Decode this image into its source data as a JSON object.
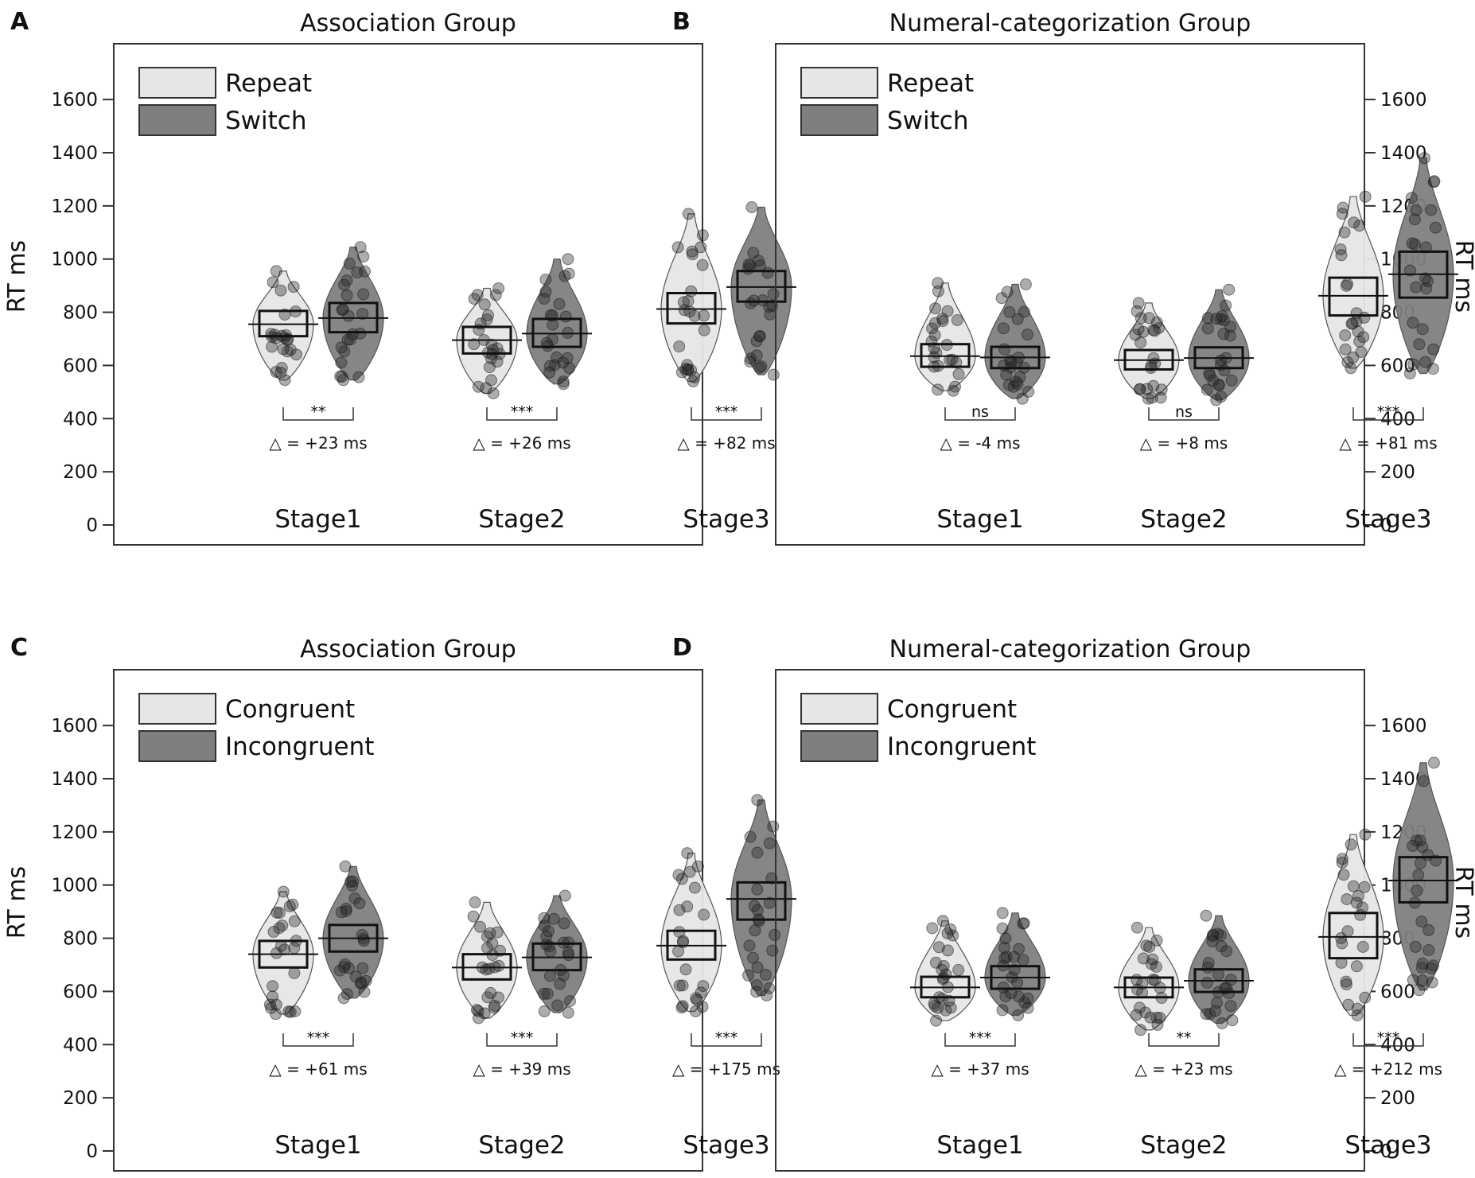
{
  "figure": {
    "panels": [
      {
        "id": "A",
        "letter": "A",
        "type": "violin",
        "title": "Association Group",
        "ylabel": "RT ms",
        "yticks": [
          "0",
          "200",
          "400",
          "600",
          "800",
          "1000",
          "1200",
          "1400",
          "1600"
        ],
        "ylim": [
          0,
          1750
        ],
        "axis_side": "left",
        "legend": [
          {
            "label": "Repeat",
            "color": "#e6e6e6"
          },
          {
            "label": "Switch",
            "color": "#7f7f7f"
          }
        ],
        "legend_position": "top-left",
        "stages": [
          {
            "label": "Stage1",
            "sig": "**",
            "delta": "△ = +23 ms",
            "series": [
              {
                "mean": 755,
                "ci": [
                  710,
                  805
                ],
                "min": 545,
                "max": 955
              },
              {
                "mean": 778,
                "ci": [
                  725,
                  835
                ],
                "min": 545,
                "max": 1045
              }
            ]
          },
          {
            "label": "Stage2",
            "sig": "***",
            "delta": "△ = +26 ms",
            "series": [
              {
                "mean": 695,
                "ci": [
                  645,
                  745
                ],
                "min": 495,
                "max": 890
              },
              {
                "mean": 720,
                "ci": [
                  670,
                  775
                ],
                "min": 530,
                "max": 1000
              }
            ]
          },
          {
            "label": "Stage3",
            "sig": "***",
            "delta": "△ = +82 ms",
            "series": [
              {
                "mean": 812,
                "ci": [
                  758,
                  872
                ],
                "min": 540,
                "max": 1170
              },
              {
                "mean": 895,
                "ci": [
                  840,
                  955
                ],
                "min": 565,
                "max": 1195
              }
            ]
          }
        ]
      },
      {
        "id": "B",
        "letter": "B",
        "type": "violin",
        "title": "Numeral-categorization Group",
        "ylabel": "RT ms",
        "yticks": [
          "0",
          "200",
          "400",
          "600",
          "800",
          "1000",
          "1200",
          "1400",
          "1600"
        ],
        "ylim": [
          0,
          1750
        ],
        "axis_side": "right",
        "legend": [
          {
            "label": "Repeat",
            "color": "#e6e6e6"
          },
          {
            "label": "Switch",
            "color": "#7f7f7f"
          }
        ],
        "legend_position": "top-left",
        "stages": [
          {
            "label": "Stage1",
            "sig": "ns",
            "delta": "△ = -4 ms",
            "series": [
              {
                "mean": 635,
                "ci": [
                  595,
                  680
                ],
                "min": 505,
                "max": 910
              },
              {
                "mean": 630,
                "ci": [
                  590,
                  670
                ],
                "min": 475,
                "max": 905
              }
            ]
          },
          {
            "label": "Stage2",
            "sig": "ns",
            "delta": "△ = +8 ms",
            "series": [
              {
                "mean": 620,
                "ci": [
                  585,
                  658
                ],
                "min": 475,
                "max": 835
              },
              {
                "mean": 628,
                "ci": [
                  590,
                  668
                ],
                "min": 470,
                "max": 885
              }
            ]
          },
          {
            "label": "Stage3",
            "sig": "***",
            "delta": "△ = +81 ms",
            "series": [
              {
                "mean": 862,
                "ci": [
                  788,
                  930
                ],
                "min": 590,
                "max": 1235
              },
              {
                "mean": 943,
                "ci": [
                  855,
                  1028
                ],
                "min": 570,
                "max": 1380
              }
            ]
          }
        ]
      },
      {
        "id": "C",
        "letter": "C",
        "type": "violin",
        "title": "Association Group",
        "ylabel": "RT ms",
        "yticks": [
          "0",
          "200",
          "400",
          "600",
          "800",
          "1000",
          "1200",
          "1400",
          "1600"
        ],
        "ylim": [
          0,
          1750
        ],
        "axis_side": "left",
        "legend": [
          {
            "label": "Congruent",
            "color": "#e6e6e6"
          },
          {
            "label": "Incongruent",
            "color": "#7f7f7f"
          }
        ],
        "legend_position": "top-left",
        "stages": [
          {
            "label": "Stage1",
            "sig": "***",
            "delta": "△ = +61 ms",
            "series": [
              {
                "mean": 740,
                "ci": [
                  690,
                  790
                ],
                "min": 515,
                "max": 975
              },
              {
                "mean": 800,
                "ci": [
                  750,
                  850
                ],
                "min": 575,
                "max": 1070
              }
            ]
          },
          {
            "label": "Stage2",
            "sig": "***",
            "delta": "△ = +39 ms",
            "series": [
              {
                "mean": 690,
                "ci": [
                  645,
                  740
                ],
                "min": 500,
                "max": 935
              },
              {
                "mean": 728,
                "ci": [
                  680,
                  780
                ],
                "min": 520,
                "max": 960
              }
            ]
          },
          {
            "label": "Stage3",
            "sig": "***",
            "delta": "△ = +175 ms",
            "series": [
              {
                "mean": 772,
                "ci": [
                  720,
                  828
                ],
                "min": 525,
                "max": 1120
              },
              {
                "mean": 948,
                "ci": [
                  870,
                  1010
                ],
                "min": 585,
                "max": 1320
              }
            ]
          }
        ]
      },
      {
        "id": "D",
        "letter": "D",
        "type": "violin",
        "title": "Numeral-categorization Group",
        "ylabel": "RT ms",
        "yticks": [
          "0",
          "200",
          "400",
          "600",
          "800",
          "1000",
          "1200",
          "1400",
          "1600"
        ],
        "ylim": [
          0,
          1750
        ],
        "axis_side": "right",
        "legend": [
          {
            "label": "Congruent",
            "color": "#e6e6e6"
          },
          {
            "label": "Incongruent",
            "color": "#7f7f7f"
          }
        ],
        "legend_position": "top-left",
        "stages": [
          {
            "label": "Stage1",
            "sig": "***",
            "delta": "△ = +37 ms",
            "series": [
              {
                "mean": 615,
                "ci": [
                  578,
                  655
                ],
                "min": 490,
                "max": 865
              },
              {
                "mean": 652,
                "ci": [
                  610,
                  695
                ],
                "min": 510,
                "max": 895
              }
            ]
          },
          {
            "label": "Stage2",
            "sig": "**",
            "delta": "△ = +23 ms",
            "series": [
              {
                "mean": 615,
                "ci": [
                  578,
                  652
                ],
                "min": 455,
                "max": 840
              },
              {
                "mean": 640,
                "ci": [
                  598,
                  683
                ],
                "min": 480,
                "max": 885
              }
            ]
          },
          {
            "label": "Stage3",
            "sig": "***",
            "delta": "△ = +212 ms",
            "series": [
              {
                "mean": 805,
                "ci": [
                  725,
                  895
                ],
                "min": 510,
                "max": 1190
              },
              {
                "mean": 1017,
                "ci": [
                  935,
                  1105
                ],
                "min": 605,
                "max": 1460
              }
            ]
          }
        ]
      }
    ]
  }
}
